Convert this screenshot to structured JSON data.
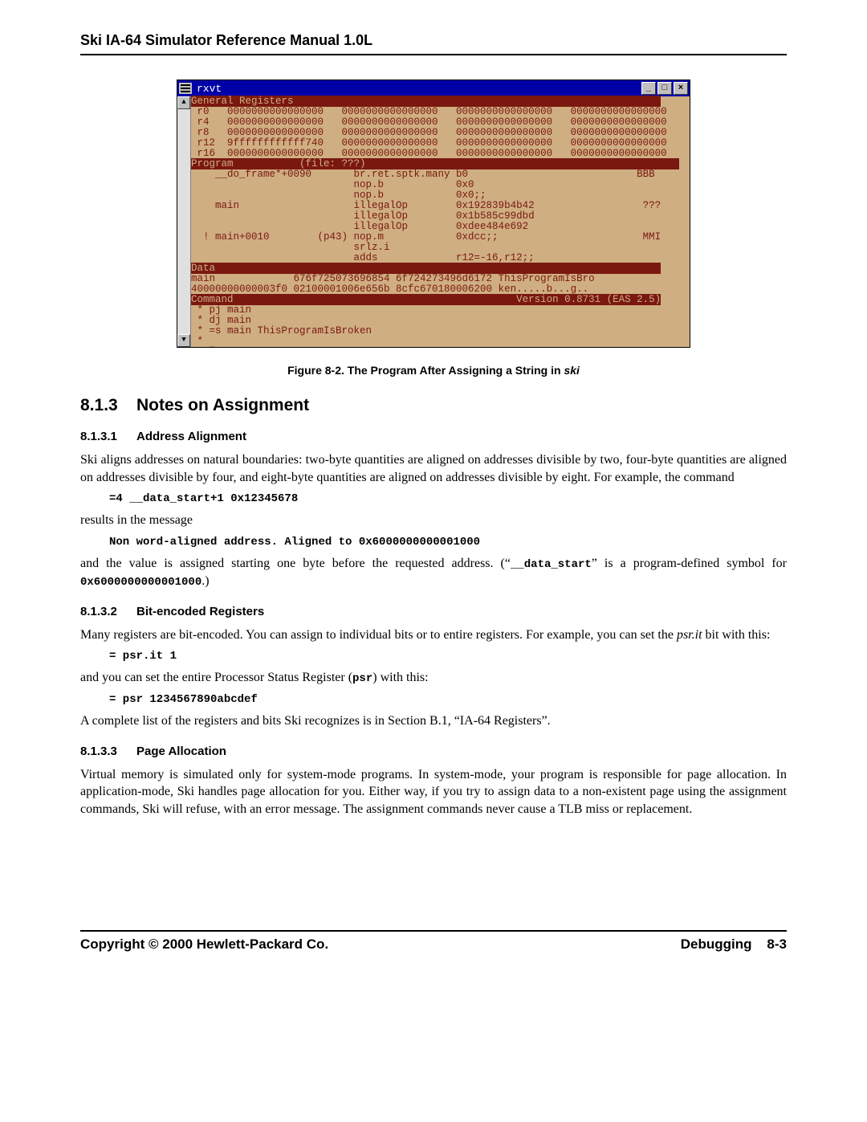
{
  "doc": {
    "header": "Ski IA-64 Simulator Reference Manual 1.0L",
    "caption_prefix": "Figure 8-2. The Program After Assigning a String in ",
    "caption_ital": "ski",
    "h2_num": "8.1.3",
    "h2_title": "Notes on Assignment",
    "h3_1_num": "8.1.3.1",
    "h3_1_title": "Address Alignment",
    "p1": "Ski aligns addresses on natural boundaries: two-byte quantities are aligned on addresses divisible by two, four-byte quantities are aligned on addresses divisible by four, and eight-byte quantities are aligned on addresses divisible by eight. For example, the command",
    "code1": "=4 __data_start+1 0x12345678",
    "p2": "results in the message",
    "code2": "Non word-aligned address. Aligned to 0x6000000000001000",
    "p3a": "and the value is assigned starting one byte before the requested address. (“",
    "p3_mono1": "__data_start",
    "p3b": "” is a program-defined symbol for ",
    "p3_mono2": "0x6000000000001000",
    "p3c": ".)",
    "h3_2_num": "8.1.3.2",
    "h3_2_title": "Bit-encoded Registers",
    "p4a": "Many registers are bit-encoded. You can assign to individual bits or to entire registers. For example, you can set the ",
    "p4_it": "psr.it",
    "p4b": " bit with this:",
    "code3": "= psr.it 1",
    "p5a": "and you can set the entire Processor Status Register (",
    "p5_mono": "psr",
    "p5b": ") with this:",
    "code4": "= psr 1234567890abcdef",
    "p6": "A complete list of the registers and bits Ski recognizes is in Section B.1, “IA-64 Registers”.",
    "h3_3_num": "8.1.3.3",
    "h3_3_title": "Page Allocation",
    "p7": "Virtual memory is simulated only for system-mode programs. In system-mode, your program is responsible for page allocation. In application-mode, Ski handles page allocation for you. Either way, if you try to assign data to a non-existent page using the assignment commands, Ski will refuse, with an error message. The assignment commands never cause a TLB miss or replacement.",
    "footer_left": "Copyright © 2000 Hewlett-Packard Co.",
    "footer_right_a": "Debugging",
    "footer_right_b": "8-3"
  },
  "term": {
    "title": "rxvt",
    "btn_min": "_",
    "btn_max": "□",
    "btn_close": "×",
    "arrow_up": "▲",
    "arrow_dn": "▼",
    "colors": {
      "bg": "#cfae82",
      "fg": "#7a1810",
      "titlebar": "#0000a8"
    },
    "header_regs": "General Registers",
    "regs": [
      " r0   0000000000000000   0000000000000000   0000000000000000   0000000000000000",
      " r4   0000000000000000   0000000000000000   0000000000000000   0000000000000000",
      " r8   0000000000000000   0000000000000000   0000000000000000   0000000000000000",
      " r12  9ffffffffffff740   0000000000000000   0000000000000000   0000000000000000",
      " r16  0000000000000000   0000000000000000   0000000000000000   0000000000000000"
    ],
    "header_prog_a": "Program",
    "header_prog_b": "(file: ???)",
    "prog": [
      "    __do_frame*+0090       br.ret.sptk.many b0                            BBB",
      "                           nop.b            0x0",
      "                           nop.b            0x0;;",
      "    main                   illegalOp        0x192839b4b42                  ???",
      "                           illegalOp        0x1b585c99dbd",
      "                           illegalOp        0xdee484e692",
      "  ! main+0010        (p43) nop.m            0xdcc;;                        MMI",
      "                           srlz.i",
      "                           adds             r12=-16,r12;;"
    ],
    "header_data": "Data",
    "data": [
      "main             676f725073696854 6f724273496d6172 ThisProgramIsBro",
      "40000000000003f0 02100001006e656b 8cfc670180006200 ken.....b...g.."
    ],
    "header_cmd": "Command",
    "header_cmd_ver": "Version 0.8731 (EAS 2.5)",
    "cmd": [
      " * pj main",
      " * dj main",
      " * =s main ThisProgramIsBroken",
      " * "
    ],
    "cursor": "█"
  }
}
